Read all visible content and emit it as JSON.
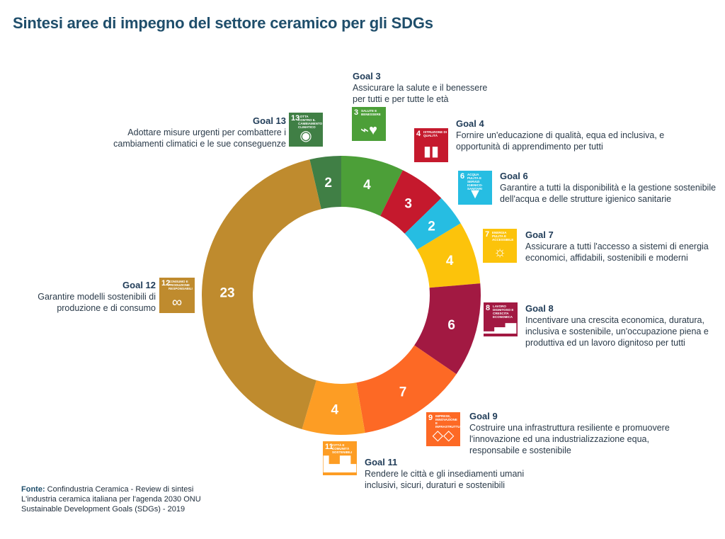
{
  "title": "Sintesi aree di impegno del settore ceramico per gli SDGs",
  "chart_data": {
    "type": "pie",
    "variant": "donut",
    "title": "Sintesi aree di impegno del settore ceramico per gli SDGs",
    "categories": [
      "Goal 13",
      "Goal 3",
      "Goal 4",
      "Goal 6",
      "Goal 7",
      "Goal 8",
      "Goal 9",
      "Goal 11",
      "Goal 12"
    ],
    "values": [
      2,
      4,
      3,
      2,
      4,
      6,
      7,
      4,
      23
    ],
    "colors": [
      "#407f45",
      "#4c9f38",
      "#c5192d",
      "#26bde2",
      "#fcc30b",
      "#a21942",
      "#fd6925",
      "#fd9d24",
      "#bf8b2e"
    ]
  },
  "goals": [
    {
      "id": "g13",
      "title": "Goal 13",
      "desc": [
        "Adottare misure urgenti per combattere i",
        "cambiamenti climatici e le sue conseguenze"
      ],
      "icon": {
        "num": "13",
        "label": "Lotta contro il cambiamento climatico",
        "glyph": "eye-globe-icon",
        "symbol": "◉",
        "color": "#407f45"
      }
    },
    {
      "id": "g3",
      "title": "Goal 3",
      "desc": [
        "Assicurare la salute e il benessere",
        "per tutti e per tutte le età"
      ],
      "icon": {
        "num": "3",
        "label": "Salute e benessere",
        "glyph": "heartbeat-icon",
        "symbol": "⌁♥",
        "color": "#4c9f38"
      }
    },
    {
      "id": "g4",
      "title": "Goal 4",
      "desc": [
        "Fornire un'educazione di qualità, equa ed inclusiva, e",
        "opportunità di apprendimento per tutti"
      ],
      "icon": {
        "num": "4",
        "label": "Istruzione di qualità",
        "glyph": "book-icon",
        "symbol": "▮▮",
        "color": "#c5192d"
      }
    },
    {
      "id": "g6",
      "title": "Goal 6",
      "desc": [
        "Garantire a tutti la disponibilità e la gestione sostenibile",
        "dell'acqua e delle strutture igienico sanitarie"
      ],
      "icon": {
        "num": "6",
        "label": "Acqua pulita e servizi igienico-sanitari",
        "glyph": "water-glass-icon",
        "symbol": "▼",
        "color": "#26bde2"
      }
    },
    {
      "id": "g7",
      "title": "Goal 7",
      "desc": [
        "Assicurare a tutti l'accesso a sistemi di energia",
        "economici, affidabili, sostenibili e moderni"
      ],
      "icon": {
        "num": "7",
        "label": "Energia pulita e accessibile",
        "glyph": "sun-icon",
        "symbol": "☼",
        "color": "#fcc30b"
      }
    },
    {
      "id": "g8",
      "title": "Goal 8",
      "desc": [
        "Incentivare una crescita economica, duratura,",
        "inclusiva e sostenibile, un'occupazione piena e",
        "produttiva ed un lavoro dignitoso per tutti"
      ],
      "icon": {
        "num": "8",
        "label": "Lavoro dignitoso e crescita economica",
        "glyph": "growth-chart-icon",
        "symbol": "▁▃▅↗",
        "color": "#a21942"
      }
    },
    {
      "id": "g9",
      "title": "Goal 9",
      "desc": [
        "Costruire una infrastruttura resiliente e promuovere",
        "l'innovazione ed una industrializzazione equa,",
        "responsabile e sostenibile"
      ],
      "icon": {
        "num": "9",
        "label": "Imprese, innovazione e infrastrutture",
        "glyph": "cubes-icon",
        "symbol": "◇◇",
        "color": "#fd6925"
      }
    },
    {
      "id": "g11",
      "title": "Goal 11",
      "desc": [
        "Rendere le città e gli insediamenti umani",
        "inclusivi, sicuri, duraturi e sostenibili"
      ],
      "icon": {
        "num": "11",
        "label": "Città e comunità sostenibili",
        "glyph": "city-buildings-icon",
        "symbol": "▙▟▙",
        "color": "#fd9d24"
      }
    },
    {
      "id": "g12",
      "title": "Goal 12",
      "desc": [
        "Garantire modelli sostenibili di",
        "produzione e di consumo"
      ],
      "icon": {
        "num": "12",
        "label": "Consumo e produzione responsabili",
        "glyph": "infinity-icon",
        "symbol": "∞",
        "color": "#bf8b2e"
      }
    }
  ],
  "source": {
    "label": "Fonte:",
    "lines": [
      "Confindustria Ceramica - Review di sintesi",
      "L'industria ceramica italiana per l'agenda 2030 ONU",
      "Sustainable Development Goals (SDGs) - 2019"
    ]
  }
}
